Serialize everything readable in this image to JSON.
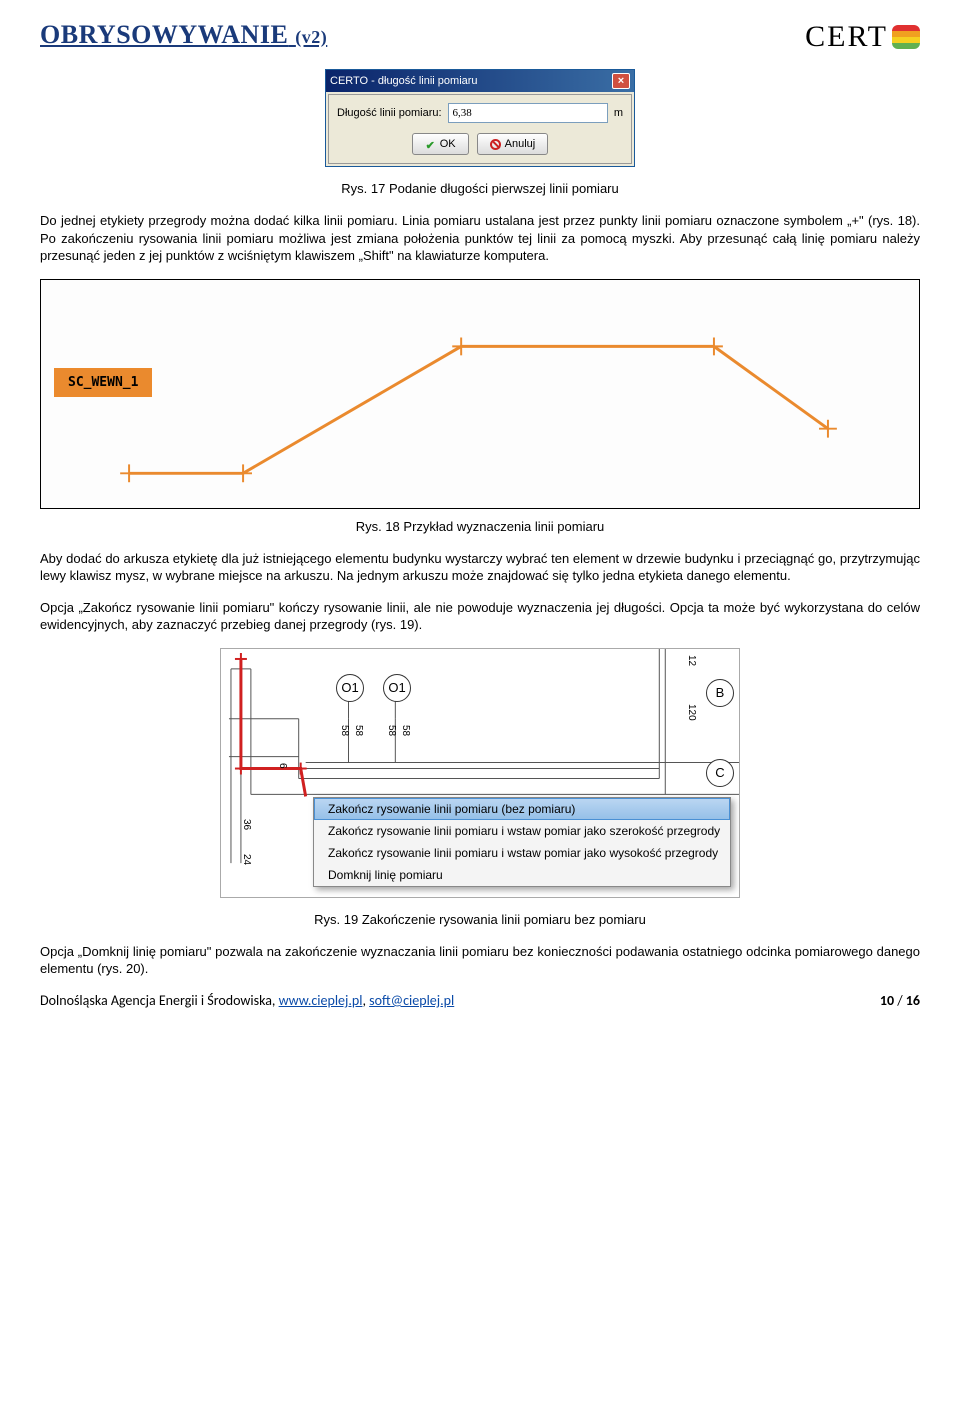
{
  "doc": {
    "title": "OBRYSOWYWANIE",
    "version": "(v2)",
    "logo_text": "CERT",
    "logo_bars": [
      "#e03030",
      "#f0a020",
      "#f5d020",
      "#60b050"
    ]
  },
  "dialog": {
    "title": "CERTO - długość linii pomiaru",
    "label": "Długość linii pomiaru:",
    "value": "6,38",
    "unit": "m",
    "ok_label": "OK",
    "cancel_label": "Anuluj"
  },
  "caption1": "Rys. 17 Podanie długości pierwszej linii pomiaru",
  "paragraph1": "Do jednej etykiety przegrody można dodać kilka linii pomiaru. Linia pomiaru ustalana jest przez punkty linii pomiaru oznaczone symbolem „+\" (rys. 18). Po zakończeniu rysowania linii pomiaru możliwa jest zmiana położenia punktów tej linii za pomocą myszki. Aby przesunąć całą linię pomiaru należy przesunąć jeden z jej punktów z wciśniętym klawiszem „Shift\" na klawiaturze komputera.",
  "figure18": {
    "tag_label": "SC_WEWN_1",
    "line_color": "#ea8a2e",
    "points": [
      [
        85,
        195
      ],
      [
        200,
        195
      ],
      [
        420,
        67
      ],
      [
        675,
        67
      ],
      [
        790,
        150
      ]
    ]
  },
  "caption2": "Rys. 18 Przykład wyznaczenia linii pomiaru",
  "paragraph2": "Aby dodać do arkusza etykietę dla już istniejącego elementu budynku wystarczy wybrać ten element w drzewie budynku i przeciągnąć go, przytrzymując lewy klawisz mysz, w wybrane miejsce na arkuszu. Na jednym arkuszu może znajdować się tylko jedna etykieta danego elementu.",
  "paragraph3": "Opcja „Zakończ rysowanie linii pomiaru\" kończy rysowanie linii, ale nie powoduje wyznaczenia jej długości. Opcja ta może być wykorzystana do celów ewidencyjnych, aby zaznaczyć przebieg danej przegrody (rys. 19).",
  "screenshot19": {
    "red_line_color": "#d02020",
    "circles": {
      "O1a": "O1",
      "O1b": "O1",
      "B": "B",
      "C": "C"
    },
    "dims": [
      "58",
      "58",
      "58",
      "58",
      "36",
      "24",
      "6",
      "12",
      "120"
    ],
    "menu_items": [
      "Zakończ rysowanie linii pomiaru (bez pomiaru)",
      "Zakończ rysowanie linii pomiaru i wstaw pomiar jako szerokość przegrody",
      "Zakończ rysowanie linii pomiaru i wstaw pomiar jako wysokość przegrody",
      "Domknij linię pomiaru"
    ],
    "selected_index": 0
  },
  "caption3": "Rys. 19 Zakończenie rysowania linii pomiaru bez pomiaru",
  "paragraph4": "Opcja „Domknij linię pomiaru\" pozwala na zakończenie wyznaczania linii pomiaru bez konieczności podawania ostatniego odcinka pomiarowego danego elementu (rys. 20).",
  "footer": {
    "left_prefix": "Dolnośląska Agencja Energii i Środowiska, ",
    "link1": "www.cieplej.pl",
    "sep": ", ",
    "link2": "soft@cieplej.pl",
    "page_current": "10",
    "page_sep": " / ",
    "page_total": "16"
  }
}
